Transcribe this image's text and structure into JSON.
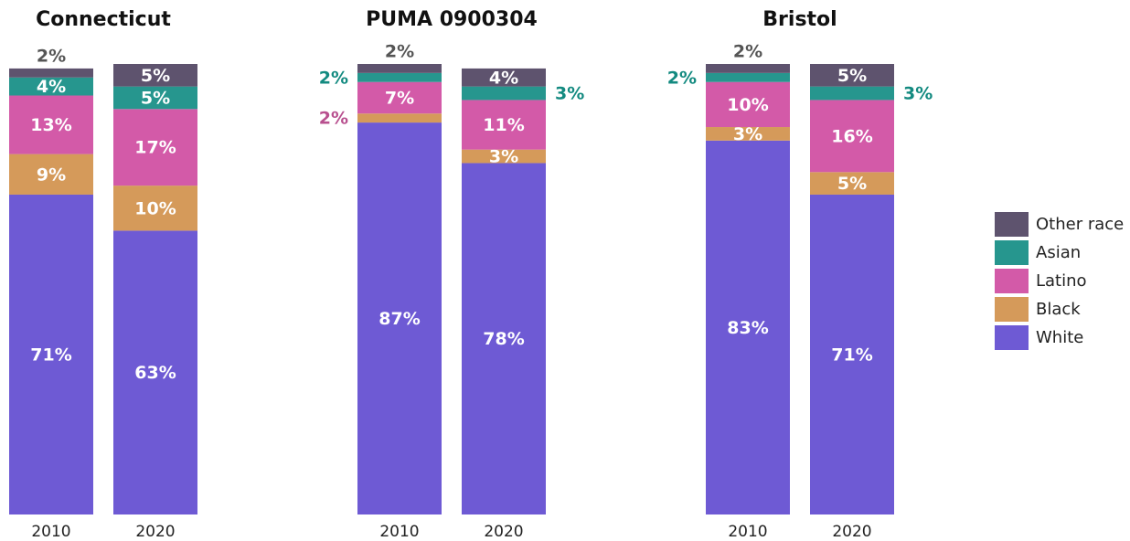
{
  "chart_data": [
    {
      "type": "bar",
      "stacked": true,
      "title": "Connecticut",
      "categories": [
        "2010",
        "2020"
      ],
      "ylim": [
        0,
        100
      ],
      "series": [
        {
          "name": "White",
          "color": "#6e5ad4",
          "values": [
            71,
            63
          ],
          "value_labels": [
            "71%",
            "63%"
          ]
        },
        {
          "name": "Black",
          "color": "#d59a5a",
          "values": [
            9,
            10
          ],
          "value_labels": [
            "9%",
            "10%"
          ]
        },
        {
          "name": "Latino",
          "color": "#d35aa8",
          "values": [
            13,
            17
          ],
          "value_labels": [
            "13%",
            "17%"
          ]
        },
        {
          "name": "Asian",
          "color": "#26968e",
          "values": [
            4,
            5
          ],
          "value_labels": [
            "4%",
            "5%"
          ]
        },
        {
          "name": "Other race",
          "color": "#5e536e",
          "values": [
            2,
            5
          ],
          "value_labels": [
            "2%",
            "5%"
          ]
        }
      ]
    },
    {
      "type": "bar",
      "stacked": true,
      "title": "PUMA 0900304",
      "categories": [
        "2010",
        "2020"
      ],
      "ylim": [
        0,
        100
      ],
      "series": [
        {
          "name": "White",
          "color": "#6e5ad4",
          "values": [
            87,
            78
          ],
          "value_labels": [
            "87%",
            "78%"
          ]
        },
        {
          "name": "Black",
          "color": "#d59a5a",
          "values": [
            2,
            3
          ],
          "value_labels": [
            "2%",
            "3%"
          ]
        },
        {
          "name": "Latino",
          "color": "#d35aa8",
          "values": [
            7,
            11
          ],
          "value_labels": [
            "7%",
            "11%"
          ]
        },
        {
          "name": "Asian",
          "color": "#26968e",
          "values": [
            2,
            3
          ],
          "value_labels": [
            "2%",
            "3%"
          ]
        },
        {
          "name": "Other race",
          "color": "#5e536e",
          "values": [
            2,
            4
          ],
          "value_labels": [
            "2%",
            "4%"
          ]
        }
      ]
    },
    {
      "type": "bar",
      "stacked": true,
      "title": "Bristol",
      "categories": [
        "2010",
        "2020"
      ],
      "ylim": [
        0,
        100
      ],
      "series": [
        {
          "name": "White",
          "color": "#6e5ad4",
          "values": [
            83,
            71
          ],
          "value_labels": [
            "83%",
            "71%"
          ]
        },
        {
          "name": "Black",
          "color": "#d59a5a",
          "values": [
            3,
            5
          ],
          "value_labels": [
            "3%",
            "5%"
          ]
        },
        {
          "name": "Latino",
          "color": "#d35aa8",
          "values": [
            10,
            16
          ],
          "value_labels": [
            "10%",
            "16%"
          ]
        },
        {
          "name": "Asian",
          "color": "#26968e",
          "values": [
            2,
            3
          ],
          "value_labels": [
            "2%",
            "3%"
          ]
        },
        {
          "name": "Other race",
          "color": "#5e536e",
          "values": [
            2,
            5
          ],
          "value_labels": [
            "2%",
            "5%"
          ]
        }
      ]
    }
  ]
}
